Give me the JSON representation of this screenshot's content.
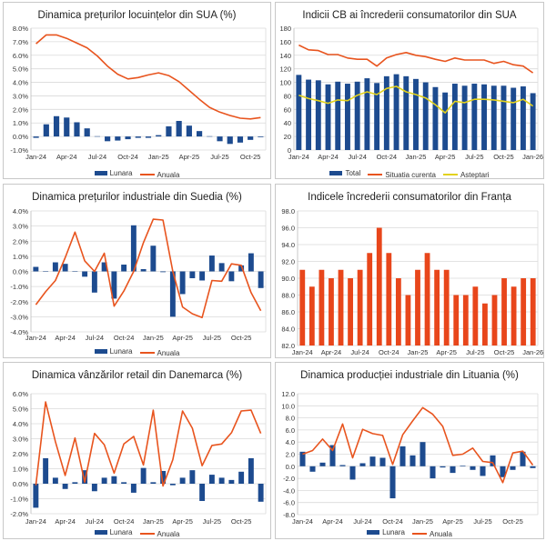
{
  "colors": {
    "bar_blue": "#1d4b8f",
    "line_orange": "#e8541e",
    "line_yellow": "#e3d21c",
    "bar_orange": "#e8461b",
    "grid": "#dadada"
  },
  "chart_data": [
    {
      "type": "bar+line",
      "title": "Dinamica prețurilor locuințelor din SUA (%)",
      "categories": [
        "Jan-24",
        "Feb-24",
        "Mar-24",
        "Apr-24",
        "May-24",
        "Jun-24",
        "Jul-24",
        "Aug-24",
        "Sep-24",
        "Oct-24",
        "Nov-24",
        "Dec-24",
        "Jan-25",
        "Feb-25",
        "Mar-25",
        "Apr-25",
        "May-25",
        "Jun-25",
        "Jul-25",
        "Aug-25",
        "Sep-25",
        "Oct-25",
        "Nov-25"
      ],
      "ylim": [
        -1,
        8
      ],
      "yticks": [
        "-1.0%",
        "0.0%",
        "1.0%",
        "2.0%",
        "3.0%",
        "4.0%",
        "5.0%",
        "6.0%",
        "7.0%",
        "8.0%"
      ],
      "grid": true,
      "legend": "bottom",
      "series": [
        {
          "name": "Lunara",
          "kind": "bar",
          "values": [
            -0.1,
            0.9,
            1.5,
            1.4,
            1.05,
            0.6,
            0.02,
            -0.35,
            -0.3,
            -0.2,
            -0.1,
            -0.1,
            0.1,
            0.75,
            1.15,
            0.8,
            0.4,
            0.02,
            -0.35,
            -0.55,
            -0.45,
            -0.25,
            -0.05
          ]
        },
        {
          "name": "Anuala",
          "kind": "line",
          "values": [
            6.85,
            7.5,
            7.5,
            7.25,
            6.9,
            6.55,
            5.95,
            5.2,
            4.6,
            4.25,
            4.35,
            4.55,
            4.7,
            4.5,
            4.05,
            3.4,
            2.75,
            2.15,
            1.8,
            1.55,
            1.35,
            1.3,
            1.4
          ]
        }
      ]
    },
    {
      "type": "bar+line",
      "title": "Indicii CB ai încrederii consumatorilor din SUA",
      "categories": [
        "Jan-24",
        "Feb-24",
        "Mar-24",
        "Apr-24",
        "May-24",
        "Jun-24",
        "Jul-24",
        "Aug-24",
        "Sep-24",
        "Oct-24",
        "Nov-24",
        "Dec-24",
        "Jan-25",
        "Feb-25",
        "Mar-25",
        "Apr-25",
        "May-25",
        "Jun-25",
        "Jul-25",
        "Aug-25",
        "Sep-25",
        "Oct-25",
        "Nov-25",
        "Dec-25",
        "Jan-26"
      ],
      "ylim": [
        0,
        180
      ],
      "yticks": [
        "0",
        "20",
        "40",
        "60",
        "80",
        "100",
        "120",
        "140",
        "160",
        "180"
      ],
      "grid": true,
      "legend": "bottom",
      "series": [
        {
          "name": "Total",
          "kind": "bar",
          "values": [
            111,
            104,
            103,
            97,
            101,
            98,
            101,
            106,
            99,
            109,
            112,
            109,
            105,
            100,
            93,
            85,
            98,
            95,
            98,
            97,
            95,
            95,
            92,
            94,
            84
          ]
        },
        {
          "name": "Situatia curenta",
          "kind": "line",
          "values": [
            155,
            148,
            147,
            141,
            141,
            136,
            134,
            134,
            124,
            136,
            141,
            144,
            140,
            138,
            134,
            131,
            136,
            133,
            133,
            133,
            128,
            131,
            126,
            124,
            114
          ]
        },
        {
          "name": "Asteptari",
          "kind": "line",
          "color": "yellow",
          "values": [
            81,
            76,
            73,
            69,
            74,
            73,
            81,
            86,
            82,
            91,
            94,
            86,
            82,
            77,
            67,
            55,
            72,
            70,
            75,
            75,
            74,
            72,
            70,
            75,
            65
          ]
        }
      ]
    },
    {
      "type": "bar+line",
      "title": "Dinamica prețurilor industriale din Suedia (%)",
      "categories": [
        "Jan-24",
        "Feb-24",
        "Mar-24",
        "Apr-24",
        "May-24",
        "Jun-24",
        "Jul-24",
        "Aug-24",
        "Sep-24",
        "Oct-24",
        "Nov-24",
        "Dec-24",
        "Jan-25",
        "Feb-25",
        "Mar-25",
        "Apr-25",
        "May-25",
        "Jun-25",
        "Jul-25",
        "Aug-25",
        "Sep-25",
        "Oct-25",
        "Nov-25",
        "Dec-25"
      ],
      "ylim": [
        -4,
        4
      ],
      "yticks": [
        "-4.0%",
        "-3.0%",
        "-2.0%",
        "-1.0%",
        "0.0%",
        "1.0%",
        "2.0%",
        "3.0%",
        "4.0%"
      ],
      "grid": true,
      "legend": "bottom",
      "series": [
        {
          "name": "Lunara",
          "kind": "bar",
          "values": [
            0.3,
            0,
            0.6,
            0.5,
            0,
            -0.35,
            -1.4,
            0.6,
            -1.8,
            0.45,
            3.05,
            0.15,
            1.7,
            -0.05,
            -3.0,
            -1.5,
            -0.45,
            -0.6,
            1.05,
            0.55,
            -0.65,
            0.4,
            1.2,
            -1.1
          ]
        },
        {
          "name": "Anuala",
          "kind": "line",
          "values": [
            -2.2,
            -1.35,
            -0.6,
            0.9,
            2.6,
            0.7,
            0.0,
            1.2,
            -2.3,
            -1.3,
            0.0,
            1.9,
            3.45,
            3.4,
            0.0,
            -2.35,
            -2.8,
            -3.05,
            -0.6,
            -0.65,
            0.5,
            0.4,
            -1.4,
            -2.6
          ]
        }
      ]
    },
    {
      "type": "bar",
      "title": "Indicele încrederii consumatorilor din Franța",
      "categories": [
        "Jan-24",
        "Feb-24",
        "Mar-24",
        "Apr-24",
        "May-24",
        "Jun-24",
        "Jul-24",
        "Aug-24",
        "Sep-24",
        "Oct-24",
        "Nov-24",
        "Dec-24",
        "Jan-25",
        "Feb-25",
        "Mar-25",
        "Apr-25",
        "May-25",
        "Jun-25",
        "Jul-25",
        "Aug-25",
        "Sep-25",
        "Oct-25",
        "Nov-25",
        "Dec-25",
        "Jan-26"
      ],
      "ylim": [
        82,
        98
      ],
      "yticks": [
        "82.0",
        "84.0",
        "86.0",
        "88.0",
        "90.0",
        "92.0",
        "94.0",
        "96.0",
        "98.0"
      ],
      "grid": true,
      "legend": "none",
      "series": [
        {
          "kind": "bar",
          "color": "orange",
          "values": [
            91,
            89,
            91,
            90,
            91,
            90,
            91,
            93,
            96,
            93,
            90,
            88,
            91,
            93,
            91,
            91,
            88,
            88,
            89,
            87,
            88,
            90,
            89,
            90,
            90
          ]
        }
      ]
    },
    {
      "type": "bar+line",
      "title": "Dinamica vânzărilor retail din Danemarca (%)",
      "categories": [
        "Jan-24",
        "Feb-24",
        "Mar-24",
        "Apr-24",
        "May-24",
        "Jun-24",
        "Jul-24",
        "Aug-24",
        "Sep-24",
        "Oct-24",
        "Nov-24",
        "Dec-24",
        "Jan-25",
        "Feb-25",
        "Mar-25",
        "Apr-25",
        "May-25",
        "Jun-25",
        "Jul-25",
        "Aug-25",
        "Sep-25",
        "Oct-25",
        "Nov-25",
        "Dec-25"
      ],
      "ylim": [
        -2,
        6
      ],
      "yticks": [
        "-2.0%",
        "-1.0%",
        "0.0%",
        "1.0%",
        "2.0%",
        "3.0%",
        "4.0%",
        "5.0%",
        "6.0%"
      ],
      "grid": true,
      "legend": "bottom",
      "series": [
        {
          "name": "Lunara",
          "kind": "bar",
          "values": [
            -1.6,
            1.7,
            0.4,
            -0.35,
            0.1,
            0.9,
            -0.5,
            0.4,
            0.5,
            0.1,
            -0.6,
            1.05,
            0.1,
            0.85,
            -0.1,
            0.4,
            0.9,
            -1.15,
            0.6,
            0.4,
            0.25,
            0.8,
            1.7,
            -1.2
          ]
        },
        {
          "name": "Anuala",
          "kind": "line",
          "values": [
            -0.1,
            5.45,
            2.8,
            0.55,
            3.05,
            0.1,
            3.35,
            2.6,
            0.7,
            2.65,
            3.15,
            1.25,
            4.9,
            -0.15,
            1.6,
            4.85,
            3.7,
            1.2,
            2.55,
            2.65,
            3.4,
            4.85,
            4.9,
            3.35
          ]
        }
      ]
    },
    {
      "type": "bar+line",
      "title": "Dinamica producției industriale din Lituania (%)",
      "categories": [
        "Jan-24",
        "Feb-24",
        "Mar-24",
        "Apr-24",
        "May-24",
        "Jun-24",
        "Jul-24",
        "Aug-24",
        "Sep-24",
        "Oct-24",
        "Nov-24",
        "Dec-24",
        "Jan-25",
        "Feb-25",
        "Mar-25",
        "Apr-25",
        "May-25",
        "Jun-25",
        "Jul-25",
        "Aug-25",
        "Sep-25",
        "Oct-25",
        "Nov-25",
        "Dec-25"
      ],
      "ylim": [
        -8,
        12
      ],
      "yticks": [
        "-8.0",
        "-6.0",
        "-4.0",
        "-2.0",
        "0.0",
        "2.0",
        "4.0",
        "6.0",
        "8.0",
        "10.0",
        "12.0"
      ],
      "grid": true,
      "legend": "bottom",
      "series": [
        {
          "name": "Lunara",
          "kind": "bar",
          "values": [
            2.4,
            -0.9,
            0.6,
            3.5,
            0.2,
            -2.2,
            0.5,
            1.6,
            1.4,
            -5.3,
            3.3,
            1.8,
            4.0,
            -2.0,
            -0.2,
            -1.1,
            0.1,
            -0.6,
            -1.6,
            1.8,
            -1.8,
            -0.6,
            2.4,
            -0.3
          ]
        },
        {
          "name": "Anuala",
          "kind": "line",
          "values": [
            2.0,
            2.6,
            4.5,
            2.6,
            7.0,
            1.4,
            6.1,
            5.4,
            5.1,
            0.3,
            5.2,
            7.5,
            9.7,
            8.6,
            6.6,
            1.8,
            2.0,
            3.0,
            0.8,
            0.6,
            -2.7,
            2.2,
            2.5,
            0.2
          ]
        }
      ]
    }
  ]
}
